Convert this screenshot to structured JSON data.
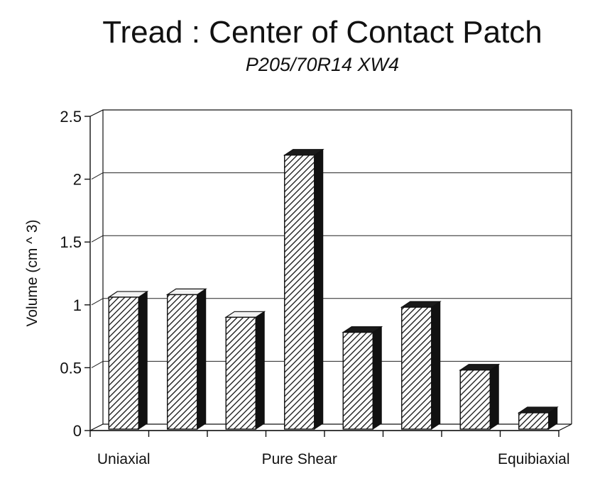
{
  "chart_data": {
    "type": "bar",
    "title": "Tread : Center of Contact Patch",
    "subtitle": "P205/70R14 XW4",
    "ylabel": "Volume (cm ^ 3)",
    "xlabel": "",
    "ylim": [
      0,
      2.5
    ],
    "yticks": [
      "0",
      "0.5",
      "1",
      "1.5",
      "2",
      "2.5"
    ],
    "ytick_values": [
      0,
      0.5,
      1,
      1.5,
      2,
      2.5
    ],
    "category_labels": [
      {
        "text": "Uniaxial",
        "position": 0
      },
      {
        "text": "Pure Shear",
        "position": 3
      },
      {
        "text": "Equibiaxial",
        "position": 7
      }
    ],
    "values": [
      1.05,
      1.07,
      0.89,
      2.18,
      0.77,
      0.97,
      0.47,
      0.13
    ],
    "grid": true,
    "style": "3d-hatched",
    "colors": {
      "bar_front_stroke": "#111111",
      "bar_side": "#111111",
      "bar_top_light": "#f2f2f2",
      "bar_top_dark": "#1a1a1a",
      "grid": "#222222",
      "axis": "#111111"
    }
  }
}
